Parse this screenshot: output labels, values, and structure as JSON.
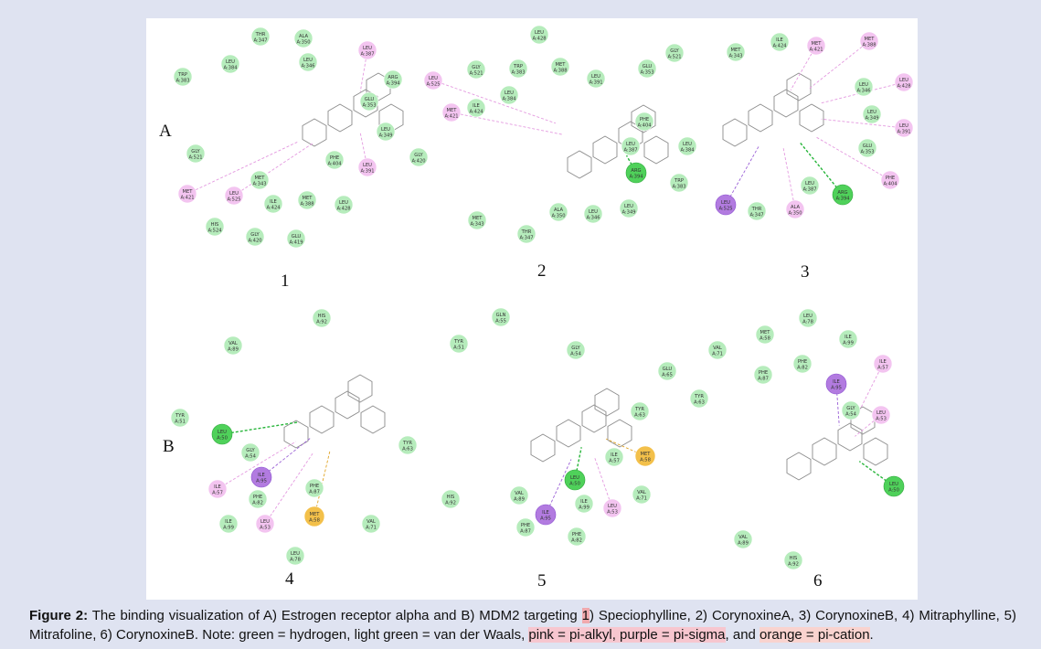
{
  "figure": {
    "section_labels": [
      "A",
      "B"
    ],
    "panel_numbers": [
      "1",
      "2",
      "3",
      "4",
      "5",
      "6"
    ]
  },
  "caption": {
    "lead": "Figure 2:",
    "part1": " The binding visualization of A) Estrogen receptor alpha and B) MDM2 targeting ",
    "hl1": "1",
    "part2": ") Speciophylline, 2) CorynoxineA, 3) CorynoxineB, 4) Mitraphylline, 5) Mitrafoline, 6) CorynoxineB. Note: green = hydrogen, light green = van der Waals, ",
    "hl_pink": "pink = pi-alkyl, purple = pi-sigma",
    "part3": ", and ",
    "hl_orange": "orange = pi-cation",
    "end": "."
  },
  "colors": {
    "vdw": "#b6ecbc",
    "hbond": "#4fd15a",
    "pi_alkyl": "#f3c4f0",
    "pi_sigma": "#b27be0",
    "pi_cation": "#f3c04a"
  },
  "residues": {
    "p1": [
      {
        "n": "THR",
        "id": "A:347",
        "t": "vdw"
      },
      {
        "n": "ALA",
        "id": "A:350",
        "t": "vdw"
      },
      {
        "n": "LEU",
        "id": "A:387",
        "t": "pi_alkyl"
      },
      {
        "n": "TRP",
        "id": "A:383",
        "t": "vdw"
      },
      {
        "n": "LEU",
        "id": "A:384",
        "t": "vdw"
      },
      {
        "n": "LEU",
        "id": "A:346",
        "t": "vdw"
      },
      {
        "n": "ARG",
        "id": "A:394",
        "t": "vdw"
      },
      {
        "n": "GLU",
        "id": "A:353",
        "t": "vdw"
      },
      {
        "n": "LEU",
        "id": "A:349",
        "t": "vdw"
      },
      {
        "n": "GLY",
        "id": "A:521",
        "t": "vdw"
      },
      {
        "n": "GLY",
        "id": "A:420",
        "t": "vdw"
      },
      {
        "n": "PHE",
        "id": "A:404",
        "t": "vdw"
      },
      {
        "n": "LEU",
        "id": "A:391",
        "t": "pi_alkyl"
      },
      {
        "n": "MET",
        "id": "A:343",
        "t": "vdw"
      },
      {
        "n": "MET",
        "id": "A:421",
        "t": "pi_alkyl"
      },
      {
        "n": "LEU",
        "id": "A:525",
        "t": "pi_alkyl"
      },
      {
        "n": "ILE",
        "id": "A:424",
        "t": "vdw"
      },
      {
        "n": "MET",
        "id": "A:388",
        "t": "vdw"
      },
      {
        "n": "LEU",
        "id": "A:428",
        "t": "vdw"
      },
      {
        "n": "HIS",
        "id": "A:524",
        "t": "vdw"
      },
      {
        "n": "GLY",
        "id": "A:420",
        "t": "vdw"
      },
      {
        "n": "GLU",
        "id": "A:419",
        "t": "vdw"
      }
    ],
    "p2": [
      {
        "n": "LEU",
        "id": "A:428",
        "t": "vdw"
      },
      {
        "n": "GLY",
        "id": "A:521",
        "t": "vdw"
      },
      {
        "n": "LEU",
        "id": "A:525",
        "t": "pi_alkyl"
      },
      {
        "n": "GLY",
        "id": "A:521",
        "t": "vdw"
      },
      {
        "n": "TRP",
        "id": "A:383",
        "t": "vdw"
      },
      {
        "n": "MET",
        "id": "A:388",
        "t": "vdw"
      },
      {
        "n": "GLU",
        "id": "A:353",
        "t": "vdw"
      },
      {
        "n": "LEU",
        "id": "A:391",
        "t": "vdw"
      },
      {
        "n": "LEU",
        "id": "A:384",
        "t": "vdw"
      },
      {
        "n": "MET",
        "id": "A:421",
        "t": "pi_alkyl"
      },
      {
        "n": "ILE",
        "id": "A:424",
        "t": "vdw"
      },
      {
        "n": "PHE",
        "id": "A:404",
        "t": "vdw"
      },
      {
        "n": "LEU",
        "id": "A:387",
        "t": "vdw"
      },
      {
        "n": "LEU",
        "id": "A:384",
        "t": "vdw"
      },
      {
        "n": "ARG",
        "id": "A:394",
        "t": "hbond"
      },
      {
        "n": "TRP",
        "id": "A:383",
        "t": "vdw"
      },
      {
        "n": "ALA",
        "id": "A:350",
        "t": "vdw"
      },
      {
        "n": "LEU",
        "id": "A:346",
        "t": "vdw"
      },
      {
        "n": "LEU",
        "id": "A:349",
        "t": "vdw"
      },
      {
        "n": "MET",
        "id": "A:343",
        "t": "vdw"
      },
      {
        "n": "THR",
        "id": "A:347",
        "t": "vdw"
      }
    ],
    "p3": [
      {
        "n": "MET",
        "id": "A:343",
        "t": "vdw"
      },
      {
        "n": "ILE",
        "id": "A:424",
        "t": "vdw"
      },
      {
        "n": "MET",
        "id": "A:421",
        "t": "pi_alkyl"
      },
      {
        "n": "MET",
        "id": "A:388",
        "t": "pi_alkyl"
      },
      {
        "n": "LEU",
        "id": "A:346",
        "t": "vdw"
      },
      {
        "n": "LEU",
        "id": "A:428",
        "t": "pi_alkyl"
      },
      {
        "n": "LEU",
        "id": "A:349",
        "t": "vdw"
      },
      {
        "n": "LEU",
        "id": "A:391",
        "t": "pi_alkyl"
      },
      {
        "n": "GLU",
        "id": "A:353",
        "t": "vdw"
      },
      {
        "n": "PHE",
        "id": "A:404",
        "t": "pi_alkyl"
      },
      {
        "n": "LEU",
        "id": "A:387",
        "t": "vdw"
      },
      {
        "n": "ARG",
        "id": "A:394",
        "t": "hbond"
      },
      {
        "n": "ALA",
        "id": "A:350",
        "t": "pi_alkyl"
      },
      {
        "n": "THR",
        "id": "A:347",
        "t": "vdw"
      },
      {
        "n": "LEU",
        "id": "A:525",
        "t": "pi_sigma"
      }
    ],
    "p4": [
      {
        "n": "HIS",
        "id": "A:92",
        "t": "vdw"
      },
      {
        "n": "VAL",
        "id": "A:89",
        "t": "vdw"
      },
      {
        "n": "TYR",
        "id": "A:51",
        "t": "vdw"
      },
      {
        "n": "LEU",
        "id": "A:50",
        "t": "hbond"
      },
      {
        "n": "TYR",
        "id": "A:63",
        "t": "vdw"
      },
      {
        "n": "GLY",
        "id": "A:54",
        "t": "vdw"
      },
      {
        "n": "ILE",
        "id": "A:95",
        "t": "pi_sigma"
      },
      {
        "n": "ILE",
        "id": "A:57",
        "t": "pi_alkyl"
      },
      {
        "n": "PHE",
        "id": "A:87",
        "t": "vdw"
      },
      {
        "n": "PHE",
        "id": "A:82",
        "t": "vdw"
      },
      {
        "n": "MET",
        "id": "A:58",
        "t": "pi_cation"
      },
      {
        "n": "ILE",
        "id": "A:99",
        "t": "vdw"
      },
      {
        "n": "LEU",
        "id": "A:53",
        "t": "pi_alkyl"
      },
      {
        "n": "VAL",
        "id": "A:71",
        "t": "vdw"
      },
      {
        "n": "LEU",
        "id": "A:78",
        "t": "vdw"
      }
    ],
    "p5": [
      {
        "n": "GLN",
        "id": "A:55",
        "t": "vdw"
      },
      {
        "n": "TYR",
        "id": "A:51",
        "t": "vdw"
      },
      {
        "n": "GLY",
        "id": "A:54",
        "t": "vdw"
      },
      {
        "n": "GLU",
        "id": "A:65",
        "t": "vdw"
      },
      {
        "n": "TYR",
        "id": "A:63",
        "t": "vdw"
      },
      {
        "n": "ILE",
        "id": "A:57",
        "t": "vdw"
      },
      {
        "n": "MET",
        "id": "A:58",
        "t": "pi_cation"
      },
      {
        "n": "LEU",
        "id": "A:50",
        "t": "hbond"
      },
      {
        "n": "VAL",
        "id": "A:71",
        "t": "vdw"
      },
      {
        "n": "VAL",
        "id": "A:89",
        "t": "vdw"
      },
      {
        "n": "ILE",
        "id": "A:99",
        "t": "vdw"
      },
      {
        "n": "LEU",
        "id": "A:53",
        "t": "pi_alkyl"
      },
      {
        "n": "HIS",
        "id": "A:92",
        "t": "vdw"
      },
      {
        "n": "ILE",
        "id": "A:95",
        "t": "pi_sigma"
      },
      {
        "n": "PHE",
        "id": "A:87",
        "t": "vdw"
      },
      {
        "n": "PHE",
        "id": "A:82",
        "t": "vdw"
      }
    ],
    "p6": [
      {
        "n": "LEU",
        "id": "A:78",
        "t": "vdw"
      },
      {
        "n": "MET",
        "id": "A:58",
        "t": "vdw"
      },
      {
        "n": "ILE",
        "id": "A:99",
        "t": "vdw"
      },
      {
        "n": "VAL",
        "id": "A:71",
        "t": "vdw"
      },
      {
        "n": "PHE",
        "id": "A:82",
        "t": "vdw"
      },
      {
        "n": "ILE",
        "id": "A:57",
        "t": "pi_alkyl"
      },
      {
        "n": "PHE",
        "id": "A:87",
        "t": "vdw"
      },
      {
        "n": "GLU",
        "id": "A:65",
        "t": "vdw"
      },
      {
        "n": "ILE",
        "id": "A:95",
        "t": "pi_sigma"
      },
      {
        "n": "TYR",
        "id": "A:63",
        "t": "vdw"
      },
      {
        "n": "GLY",
        "id": "A:54",
        "t": "vdw"
      },
      {
        "n": "LEU",
        "id": "A:53",
        "t": "pi_alkyl"
      },
      {
        "n": "LEU",
        "id": "A:50",
        "t": "hbond"
      },
      {
        "n": "VAL",
        "id": "A:89",
        "t": "vdw"
      },
      {
        "n": "HIS",
        "id": "A:92",
        "t": "vdw"
      }
    ]
  }
}
